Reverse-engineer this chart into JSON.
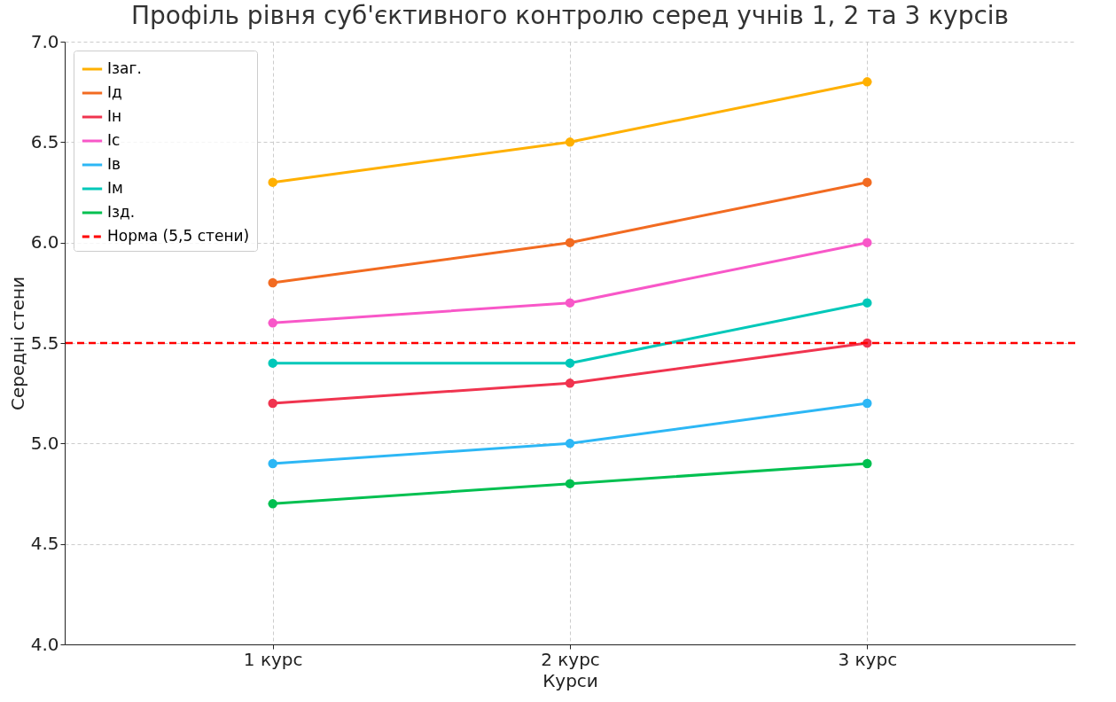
{
  "chart_data": {
    "type": "line",
    "title": "Профіль рівня суб'єктивного контролю серед учнів 1, 2 та 3 курсів",
    "xlabel": "Курси",
    "ylabel": "Середні стени",
    "categories": [
      "1 курс",
      "2 курс",
      "3 курс"
    ],
    "series": [
      {
        "name": "Ізаг.",
        "color": "#ffb000",
        "values": [
          6.3,
          6.5,
          6.8
        ]
      },
      {
        "name": "Ід",
        "color": "#f26b21",
        "values": [
          5.8,
          6.0,
          6.3
        ]
      },
      {
        "name": "Ін",
        "color": "#f0344f",
        "values": [
          5.2,
          5.3,
          5.5
        ]
      },
      {
        "name": "Іс",
        "color": "#f857c8",
        "values": [
          5.6,
          5.7,
          6.0
        ]
      },
      {
        "name": "Ів",
        "color": "#2db7f5",
        "values": [
          4.9,
          5.0,
          5.2
        ]
      },
      {
        "name": "Ім",
        "color": "#00c8b9",
        "values": [
          5.4,
          5.4,
          5.7
        ]
      },
      {
        "name": "Ізд.",
        "color": "#00c050",
        "values": [
          4.7,
          4.8,
          4.9
        ]
      }
    ],
    "ref_lines": [
      {
        "axis": "y",
        "value": 5.5,
        "label": "Норма (5,5 стени)",
        "color": "#ff0000",
        "line_style": "dashed"
      }
    ],
    "ylim": [
      4,
      7
    ],
    "yticks": [
      {
        "value": 4,
        "label": "4.0"
      },
      {
        "value": 4.5,
        "label": "4.5"
      },
      {
        "value": 5,
        "label": "5.0"
      },
      {
        "value": 5.5,
        "label": "5.5"
      },
      {
        "value": 6,
        "label": "6.0"
      },
      {
        "value": 6.5,
        "label": "6.5"
      },
      {
        "value": 7,
        "label": "7.0"
      }
    ],
    "grid": true,
    "legend": "top left",
    "marker": "circle",
    "line_style": "solid"
  }
}
